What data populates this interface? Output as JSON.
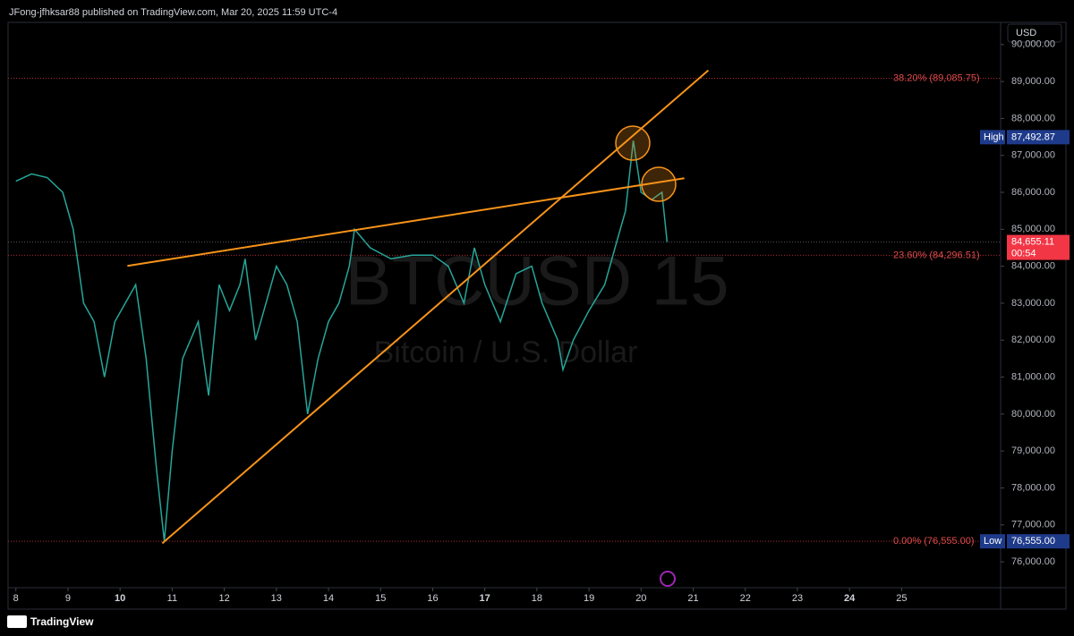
{
  "header": {
    "text": "JFong-jfhksar88 published on TradingView.com, Mar 20, 2025 11:59 UTC-4"
  },
  "footer": {
    "brand": "TradingView"
  },
  "chart_data": {
    "type": "line",
    "title": "BTCUSD 15",
    "subtitle": "Bitcoin / U.S. Dollar",
    "currency": "USD",
    "color": "#26a69a",
    "x": [
      8.0,
      8.3,
      8.6,
      8.9,
      9.1,
      9.3,
      9.5,
      9.7,
      9.9,
      10.1,
      10.3,
      10.5,
      10.7,
      10.85,
      11.0,
      11.2,
      11.5,
      11.7,
      11.9,
      12.1,
      12.3,
      12.4,
      12.6,
      12.8,
      13.0,
      13.2,
      13.4,
      13.6,
      13.8,
      14.0,
      14.2,
      14.4,
      14.5,
      14.8,
      15.2,
      15.6,
      16.0,
      16.3,
      16.6,
      16.8,
      17.0,
      17.3,
      17.6,
      17.9,
      18.1,
      18.4,
      18.5,
      18.7,
      19.0,
      19.3,
      19.5,
      19.7,
      19.85,
      20.0,
      20.2,
      20.4,
      20.5
    ],
    "series": [
      {
        "name": "BTCUSD",
        "color": "#26a69a",
        "values": [
          86300,
          86500,
          86400,
          86000,
          85000,
          83000,
          82500,
          81000,
          82500,
          83000,
          83500,
          81500,
          78500,
          76555,
          79000,
          81500,
          82500,
          80500,
          83500,
          82800,
          83500,
          84200,
          82000,
          83000,
          84000,
          83500,
          82500,
          80000,
          81500,
          82500,
          83000,
          84000,
          85000,
          84500,
          84200,
          84300,
          84300,
          84000,
          83000,
          84500,
          83500,
          82500,
          83800,
          84000,
          83000,
          82000,
          81200,
          82000,
          82800,
          83500,
          84500,
          85500,
          87400,
          86000,
          85800,
          86000,
          84655.11
        ]
      }
    ],
    "xlim": [
      7.85,
      26.9
    ],
    "xticks": [
      8,
      9,
      10,
      11,
      12,
      13,
      14,
      15,
      16,
      17,
      18,
      19,
      20,
      21,
      22,
      23,
      24,
      25
    ],
    "ylim": [
      75300,
      90600
    ],
    "yticks": [
      {
        "value": 76000,
        "label": "76,000.00"
      },
      {
        "value": 77000,
        "label": "77,000.00"
      },
      {
        "value": 78000,
        "label": "78,000.00"
      },
      {
        "value": 79000,
        "label": "79,000.00"
      },
      {
        "value": 80000,
        "label": "80,000.00"
      },
      {
        "value": 81000,
        "label": "81,000.00"
      },
      {
        "value": 82000,
        "label": "82,000.00"
      },
      {
        "value": 83000,
        "label": "83,000.00"
      },
      {
        "value": 84000,
        "label": "84,000.00"
      },
      {
        "value": 85000,
        "label": "85,000.00"
      },
      {
        "value": 86000,
        "label": "86,000.00"
      },
      {
        "value": 87000,
        "label": "87,000.00"
      },
      {
        "value": 88000,
        "label": "88,000.00"
      },
      {
        "value": 89000,
        "label": "89,000.00"
      },
      {
        "value": 90000,
        "label": "90,000.00"
      }
    ],
    "fib_levels": [
      {
        "value": 89085.75,
        "label": "38.20% (89,085.75)"
      },
      {
        "value": 84296.51,
        "label": "23.60% (84,296.51)"
      },
      {
        "value": 76555.0,
        "label": "0.00% (76,555.00)"
      }
    ],
    "high": {
      "name": "High",
      "value": 87492.87,
      "label": "87,492.87"
    },
    "low": {
      "name": "Low",
      "value": 76555.0,
      "label": "76,555.00"
    },
    "last": {
      "value": 84655.11,
      "label": "84,655.11",
      "countdown": "00:54"
    },
    "trendlines": [
      {
        "x": [
          10.14,
          20.83
        ],
        "y": [
          84010,
          86381
        ],
        "color": "#f7931a"
      },
      {
        "x": [
          10.81,
          21.29
        ],
        "y": [
          76500,
          89301
        ],
        "color": "#f7931a"
      }
    ]
  }
}
